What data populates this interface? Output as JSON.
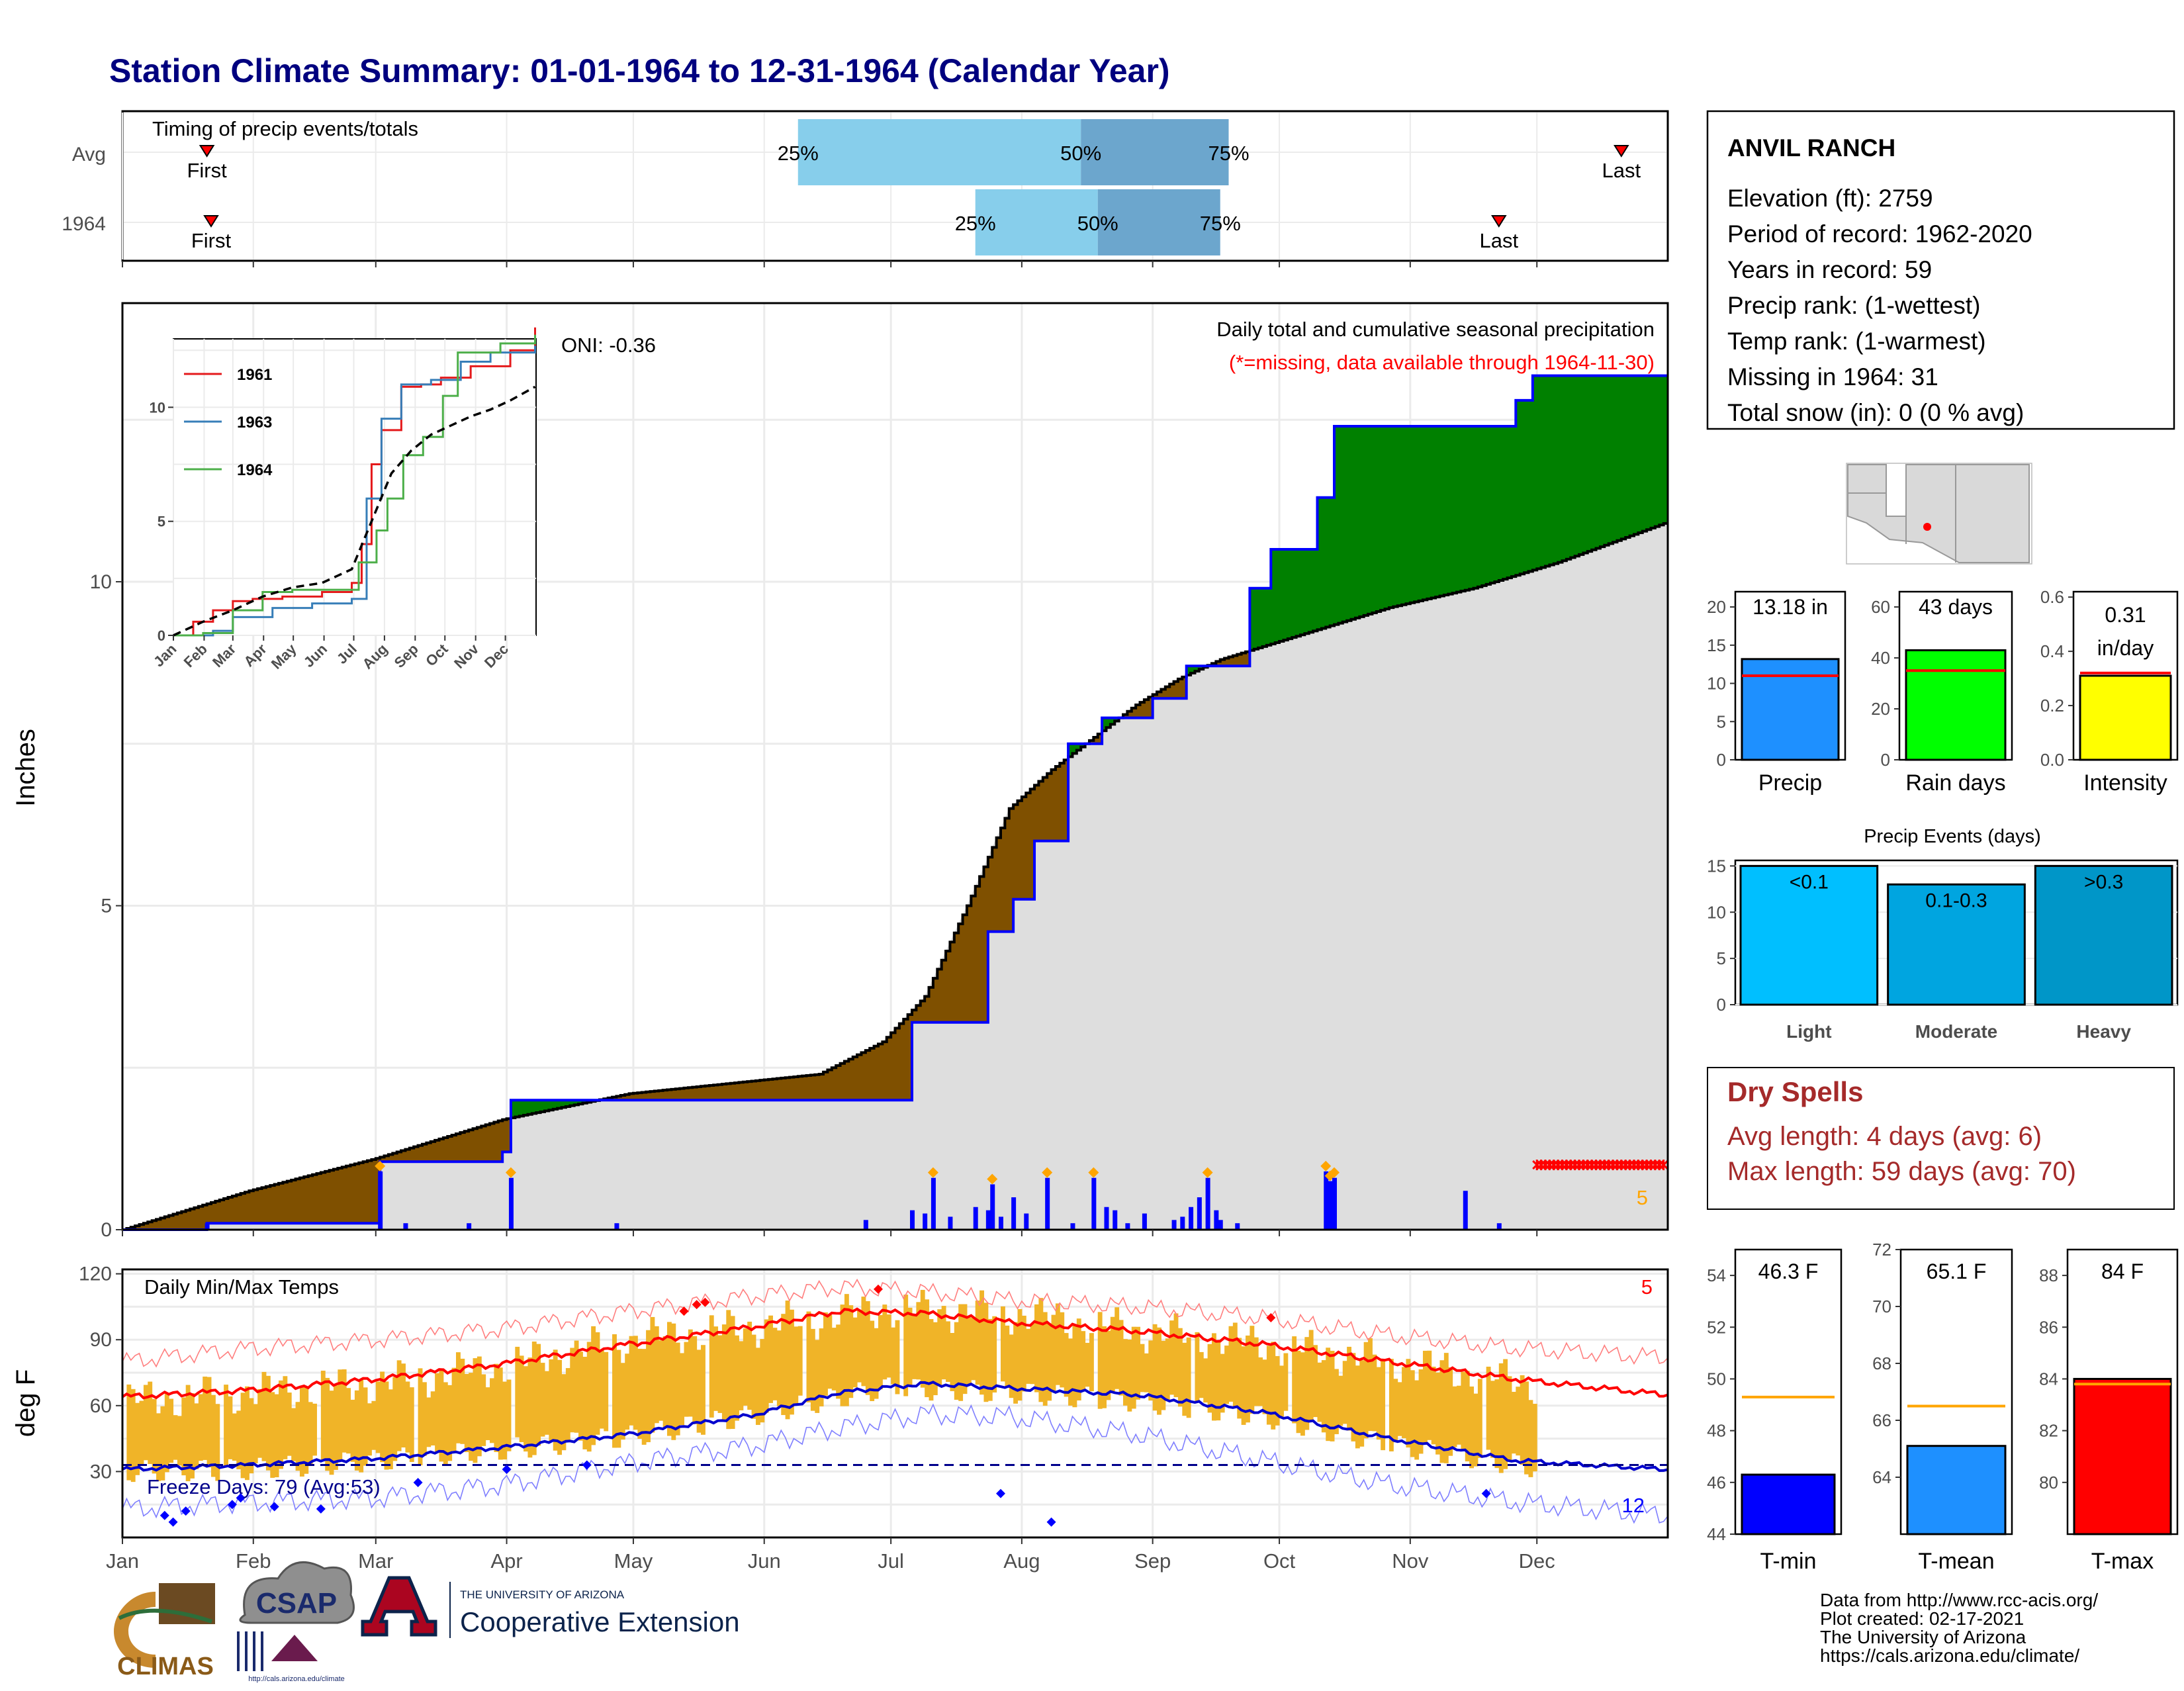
{
  "page": {
    "title": "Station Climate Summary: 01-01-1964 to 12-31-1964 (Calendar Year)",
    "title_color": "#00007f"
  },
  "months": [
    "Jan",
    "Feb",
    "Mar",
    "Apr",
    "May",
    "Jun",
    "Jul",
    "Aug",
    "Sep",
    "Oct",
    "Nov",
    "Dec"
  ],
  "timing_panel": {
    "title": "Timing of precip events/totals",
    "rows": [
      {
        "label": "Avg",
        "first_label": "First",
        "last_label": "Last",
        "first_day": 20,
        "last_day": 355,
        "p25_day": 160,
        "p50_day": 227,
        "p75_day": 262,
        "p25_label": "25%",
        "p50_label": "50%",
        "p75_label": "75%"
      },
      {
        "label": "1964",
        "first_label": "First",
        "last_label": "Last",
        "first_day": 21,
        "last_day": 326,
        "p25_day": 202,
        "p50_day": 231,
        "p75_day": 260,
        "p25_label": "25%",
        "p50_label": "50%",
        "p75_label": "75%"
      }
    ]
  },
  "precip_panel": {
    "title": "Daily total and cumulative seasonal precipitation",
    "subtitle": "(*=missing, data available through 1964-11-30)",
    "ylabel": "Inches",
    "ylim": [
      0,
      14.3
    ],
    "yticks": [
      0,
      5,
      10
    ],
    "oni_label": "ONI: -0.36",
    "missing_count": "5",
    "colors": {
      "above": "#008000",
      "below": "#7f5000",
      "cum_line": "#0000ff",
      "avg_fill": "#dedede",
      "bars": "#0000ff",
      "missing": "#ff0000",
      "marker": "#ffa500"
    }
  },
  "inset": {
    "yticks": [
      0,
      5,
      10
    ],
    "legend": [
      {
        "name": "1961",
        "color": "#e41a1c"
      },
      {
        "name": "1963",
        "color": "#377eb8"
      },
      {
        "name": "1964",
        "color": "#4daf4a"
      }
    ]
  },
  "temp_panel": {
    "title": "Daily Min/Max Temps",
    "ylabel": "deg F",
    "ylim": [
      0,
      122
    ],
    "yticks": [
      30,
      60,
      90,
      120
    ],
    "freeze_label": "Freeze Days: 79 (Avg:53)",
    "max_missing": "5",
    "min_missing": "12",
    "colors": {
      "bars": "#f0b428",
      "avg_max": "#ff0000",
      "avg_min": "#0000cd",
      "rec_max": "#ff7f7f",
      "rec_min": "#7f7fff"
    }
  },
  "station": {
    "name": "ANVIL RANCH",
    "lines": [
      "Elevation (ft): 2759",
      "Period of record: 1962-2020",
      "Years in record: 59",
      "Precip rank:  (1-wettest)",
      "Temp rank:  (1-warmest)",
      "Missing in 1964: 31",
      "Total snow (in): 0 (0 % avg)"
    ]
  },
  "summary_bars": [
    {
      "label": "Precip",
      "value_text": "13.18 in",
      "value": 13.18,
      "avg": 11.0,
      "ylim": [
        0,
        22
      ],
      "yticks": [
        0,
        5,
        10,
        15,
        20
      ],
      "color": "#1e90ff"
    },
    {
      "label": "Rain days",
      "value_text": "43 days",
      "value": 43,
      "avg": 35,
      "ylim": [
        0,
        66
      ],
      "yticks": [
        0,
        20,
        40,
        60
      ],
      "color": "#00ff00"
    },
    {
      "label": "Intensity",
      "value_text": "0.31",
      "value_text2": "in/day",
      "value": 0.31,
      "avg": 0.32,
      "ylim": [
        0,
        0.62
      ],
      "yticks": [
        "0.0",
        "0.2",
        "0.4",
        "0.6"
      ],
      "color": "#ffff00"
    }
  ],
  "precip_events": {
    "title": "Precip Events (days)",
    "ylim": [
      0,
      15.6
    ],
    "yticks": [
      0,
      5,
      10,
      15
    ],
    "categories": [
      "Light",
      "Moderate",
      "Heavy"
    ],
    "bar_labels": [
      "<0.1",
      "0.1-0.3",
      ">0.3"
    ],
    "values": [
      15,
      13,
      15
    ],
    "colors": [
      "#00bfff",
      "#00a5e0",
      "#0096c8"
    ]
  },
  "dry_spells": {
    "title": "Dry Spells",
    "avg_length": "Avg length: 4 days (avg: 6)",
    "max_length": "Max length: 59 days (avg: 70)",
    "color": "#a52a2a"
  },
  "temp_bars": [
    {
      "label": "T-min",
      "value_text": "46.3 F",
      "value": 46.3,
      "avg": 49.3,
      "ylim": [
        44,
        55
      ],
      "yticks": [
        44,
        46,
        48,
        50,
        52,
        54
      ],
      "color": "#0000ff"
    },
    {
      "label": "T-mean",
      "value_text": "65.1 F",
      "value": 65.1,
      "avg": 66.5,
      "ylim": [
        62,
        72
      ],
      "yticks": [
        64,
        66,
        68,
        70,
        72
      ],
      "color": "#1e90ff"
    },
    {
      "label": "T-max",
      "value_text": "84 F",
      "value": 84,
      "avg": 83.8,
      "ylim": [
        78,
        89
      ],
      "yticks": [
        80,
        82,
        84,
        86,
        88
      ],
      "color": "#ff0000"
    }
  ],
  "logos": {
    "climas": "CLIMAS",
    "csap": "CSAP",
    "ua_small": "THE UNIVERSITY OF ARIZONA",
    "ua_big": "Cooperative Extension",
    "csap_url": "http://cals.arizona.edu/climate"
  },
  "credits": [
    "Data from http://www.rcc-acis.org/",
    "Plot created: 02-17-2021",
    "The University of Arizona",
    "https://cals.arizona.edu/climate/"
  ],
  "chart_data": [
    {
      "type": "timing",
      "rows": [
        {
          "label": "Avg",
          "first": 20,
          "p25": 160,
          "p50": 227,
          "p75": 262,
          "last": 355
        },
        {
          "label": "1964",
          "first": 21,
          "p25": 202,
          "p50": 231,
          "p75": 260,
          "last": 326
        }
      ]
    },
    {
      "type": "area",
      "x_unit": "day of year",
      "avg_cum": {
        "x": [
          0,
          30,
          60,
          90,
          120,
          150,
          165,
          180,
          190,
          200,
          210,
          220,
          230,
          240,
          250,
          260,
          270,
          280,
          290,
          300,
          320,
          340,
          365
        ],
        "y": [
          0,
          0.6,
          1.1,
          1.7,
          2.1,
          2.3,
          2.4,
          2.9,
          3.6,
          5.0,
          6.5,
          7.1,
          7.6,
          8.1,
          8.5,
          8.8,
          9.0,
          9.2,
          9.4,
          9.6,
          9.9,
          10.3,
          10.9
        ]
      },
      "obs_cum": {
        "x": [
          0,
          20,
          60,
          61,
          90,
          92,
          140,
          176,
          187,
          205,
          211,
          216,
          224,
          232,
          244,
          252,
          267,
          272,
          282,
          283,
          287,
          300,
          320,
          330,
          334,
          366
        ],
        "y": [
          0,
          0.1,
          0.1,
          1.05,
          1.2,
          2.0,
          2.0,
          2.0,
          3.2,
          4.6,
          5.1,
          6.0,
          7.5,
          7.9,
          8.2,
          8.7,
          9.9,
          10.5,
          10.5,
          11.3,
          12.4,
          12.4,
          12.4,
          12.8,
          13.18,
          13.18
        ]
      },
      "daily": {
        "x": [
          20,
          61,
          67,
          82,
          92,
          117,
          176,
          187,
          190,
          192,
          196,
          202,
          205,
          206,
          208,
          211,
          214,
          219,
          225,
          230,
          233,
          235,
          238,
          242,
          249,
          251,
          253,
          255,
          257,
          259,
          260,
          264,
          285,
          286,
          287,
          318,
          326
        ],
        "y": [
          0.1,
          0.9,
          0.1,
          0.1,
          0.8,
          0.1,
          0.15,
          0.3,
          0.25,
          0.8,
          0.2,
          0.35,
          0.3,
          0.7,
          0.2,
          0.5,
          0.25,
          0.8,
          0.1,
          0.8,
          0.35,
          0.3,
          0.1,
          0.25,
          0.15,
          0.2,
          0.35,
          0.5,
          0.8,
          0.3,
          0.15,
          0.1,
          0.9,
          0.75,
          0.8,
          0.6,
          0.1
        ]
      },
      "missing_range": [
        335,
        365
      ],
      "ylim": [
        0,
        14.3
      ]
    },
    {
      "type": "line",
      "name": "inset cumulative",
      "series": [
        {
          "name": "1961",
          "x": [
            0,
            20,
            40,
            60,
            80,
            110,
            150,
            180,
            190,
            200,
            210,
            230,
            250,
            270,
            300,
            340,
            365
          ],
          "y": [
            0,
            0.6,
            1.1,
            1.5,
            1.6,
            1.7,
            1.9,
            2.3,
            4.0,
            7.5,
            9.0,
            10.9,
            11.0,
            11.3,
            11.8,
            12.5,
            13.5
          ]
        },
        {
          "name": "1963",
          "x": [
            0,
            40,
            60,
            100,
            140,
            180,
            195,
            210,
            230,
            260,
            290,
            320,
            365
          ],
          "y": [
            0,
            0.2,
            0.8,
            1.2,
            1.4,
            1.6,
            6.0,
            9.5,
            11.0,
            11.2,
            12.0,
            12.4,
            12.7
          ]
        },
        {
          "name": "1964",
          "x": [
            0,
            30,
            60,
            90,
            120,
            150,
            176,
            187,
            205,
            216,
            232,
            252,
            272,
            287,
            300,
            330,
            365
          ],
          "y": [
            0,
            0.1,
            1.1,
            1.9,
            2.0,
            2.0,
            2.0,
            3.2,
            4.6,
            6.0,
            7.9,
            8.7,
            10.5,
            12.4,
            12.4,
            12.8,
            13.18
          ]
        },
        {
          "name": "avg",
          "x": [
            0,
            30,
            60,
            90,
            120,
            150,
            180,
            200,
            220,
            240,
            260,
            280,
            300,
            320,
            340,
            365
          ],
          "y": [
            0,
            0.6,
            1.1,
            1.7,
            2.1,
            2.3,
            2.9,
            5.0,
            7.1,
            8.1,
            8.8,
            9.2,
            9.6,
            9.9,
            10.3,
            10.9
          ]
        }
      ],
      "ylim": [
        0,
        13
      ]
    },
    {
      "type": "bar",
      "name": "daily temperature range",
      "avg_max": {
        "x": [
          0,
          30,
          60,
          90,
          120,
          150,
          170,
          190,
          210,
          240,
          270,
          300,
          330,
          365
        ],
        "y": [
          64,
          67,
          72,
          79,
          88,
          96,
          103,
          102,
          98,
          94,
          88,
          80,
          72,
          65
        ]
      },
      "avg_min": {
        "x": [
          0,
          30,
          60,
          90,
          120,
          150,
          170,
          190,
          210,
          240,
          270,
          300,
          330,
          365
        ],
        "y": [
          31,
          33,
          36,
          41,
          47,
          56,
          66,
          70,
          68,
          65,
          57,
          45,
          35,
          31
        ]
      },
      "record_max": {
        "x": [
          0,
          30,
          60,
          90,
          120,
          150,
          170,
          190,
          210,
          240,
          270,
          300,
          330,
          365
        ],
        "y": [
          80,
          86,
          90,
          95,
          103,
          110,
          114,
          112,
          108,
          105,
          100,
          92,
          86,
          82
        ]
      },
      "record_min": {
        "x": [
          0,
          30,
          60,
          90,
          120,
          150,
          170,
          190,
          210,
          240,
          270,
          300,
          330,
          365
        ],
        "y": [
          13,
          16,
          18,
          24,
          34,
          42,
          50,
          56,
          55,
          47,
          35,
          24,
          16,
          10
        ]
      },
      "obs_max": {
        "x": [
          0,
          30,
          60,
          90,
          120,
          150,
          180,
          210,
          240,
          270,
          300,
          334
        ],
        "y": [
          62,
          66,
          70,
          78,
          90,
          96,
          104,
          102,
          94,
          88,
          80,
          70
        ]
      },
      "obs_min": {
        "x": [
          0,
          30,
          60,
          90,
          120,
          150,
          180,
          210,
          240,
          270,
          300,
          334
        ],
        "y": [
          30,
          31,
          35,
          40,
          46,
          56,
          68,
          66,
          62,
          55,
          42,
          32
        ]
      },
      "freeze_line": 33,
      "ylim": [
        0,
        122
      ]
    }
  ]
}
